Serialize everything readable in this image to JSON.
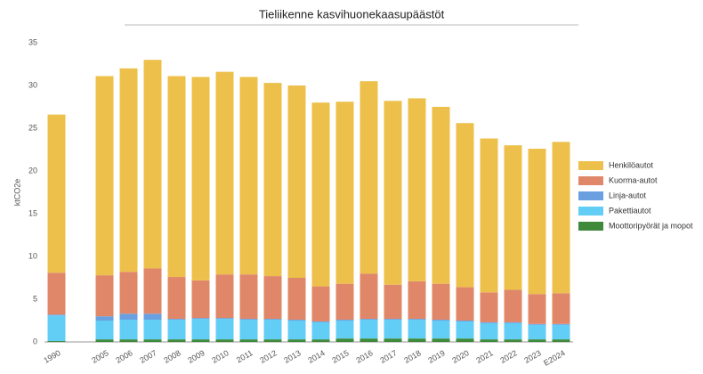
{
  "chart_data": {
    "type": "stacked_bar",
    "title": "Tieliikenne kasvihuonekaasupäästöt",
    "y_label": "ktCO2e",
    "categories": [
      "1990",
      null,
      "2005",
      "2006",
      "2007",
      "2008",
      "2009",
      "2010",
      "2011",
      "2012",
      "2013",
      "2014",
      "2015",
      "2016",
      "2017",
      "2018",
      "2019",
      "2020",
      "2021",
      "2022",
      "2023",
      "E2024"
    ],
    "series": [
      {
        "name": "Moottoripyörät ja mopot",
        "color": "#3e8a3a",
        "values": [
          0.1,
          null,
          0.3,
          0.3,
          0.3,
          0.3,
          0.3,
          0.3,
          0.3,
          0.3,
          0.3,
          0.3,
          0.4,
          0.4,
          0.4,
          0.4,
          0.4,
          0.4,
          0.3,
          0.3,
          0.3,
          0.3
        ]
      },
      {
        "name": "Pakettiautot",
        "color": "#62cef5",
        "values": [
          3.0,
          null,
          2.2,
          2.3,
          2.3,
          2.3,
          2.4,
          2.4,
          2.3,
          2.3,
          2.2,
          2.0,
          2.1,
          2.2,
          2.2,
          2.2,
          2.1,
          2.0,
          1.9,
          1.9,
          1.7,
          1.7
        ]
      },
      {
        "name": "Linja-autot",
        "color": "#6a9fe0",
        "values": [
          0.1,
          null,
          0.5,
          0.7,
          0.7,
          0.1,
          0.1,
          0.1,
          0.1,
          0.1,
          0.1,
          0.1,
          0.1,
          0.1,
          0.1,
          0.1,
          0.1,
          0.1,
          0.1,
          0.1,
          0.1,
          0.1
        ]
      },
      {
        "name": "Kuorma-autot",
        "color": "#e0876a",
        "values": [
          4.9,
          null,
          4.8,
          4.9,
          5.3,
          4.9,
          4.4,
          5.1,
          5.2,
          5.0,
          4.9,
          4.1,
          4.2,
          5.3,
          4.0,
          4.4,
          4.2,
          3.9,
          3.5,
          3.8,
          3.5,
          3.6
        ]
      },
      {
        "name": "Henkilöautot",
        "color": "#ecc04a",
        "values": [
          18.5,
          null,
          23.3,
          23.8,
          24.4,
          23.5,
          23.8,
          23.7,
          23.1,
          22.6,
          22.5,
          21.5,
          21.3,
          22.5,
          21.5,
          21.4,
          20.7,
          19.2,
          18.0,
          16.9,
          17.0,
          17.7
        ]
      }
    ],
    "ylim": [
      0,
      35
    ],
    "yticks": [
      0,
      5,
      10,
      15,
      20,
      25,
      30,
      35
    ],
    "grid": false,
    "legend": "right"
  }
}
